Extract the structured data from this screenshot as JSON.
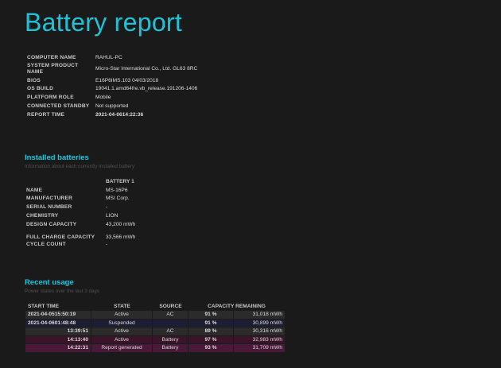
{
  "title": "Battery report",
  "system_info": [
    {
      "label": "COMPUTER NAME",
      "value": "RAHUL-PC"
    },
    {
      "label": "SYSTEM PRODUCT NAME",
      "value": "Micro-Star International Co., Ltd. GL63 8RC"
    },
    {
      "label": "BIOS",
      "value": "E16P6IMS.103 04/03/2018"
    },
    {
      "label": "OS BUILD",
      "value": "19041.1.amd64fre.vb_release.191206-1406"
    },
    {
      "label": "PLATFORM ROLE",
      "value": "Mobile"
    },
    {
      "label": "CONNECTED STANDBY",
      "value": "Not supported"
    },
    {
      "label": "REPORT TIME",
      "value": "2021-04-0614:22:36"
    }
  ],
  "installed_batteries": {
    "title": "Installed batteries",
    "subtitle": "Information about each currently installed battery",
    "column_header": "BATTERY 1",
    "rows": [
      {
        "label": "NAME",
        "value": "MS-16P6"
      },
      {
        "label": "MANUFACTURER",
        "value": "MSI Corp."
      },
      {
        "label": "SERIAL NUMBER",
        "value": "-"
      },
      {
        "label": "CHEMISTRY",
        "value": "LION"
      },
      {
        "label": "DESIGN CAPACITY",
        "value": "43,200 mWh"
      },
      {
        "label": "FULL CHARGE CAPACITY",
        "value": "33,566 mWh"
      },
      {
        "label": "CYCLE COUNT",
        "value": "-"
      }
    ]
  },
  "recent_usage": {
    "title": "Recent usage",
    "subtitle": "Power states over the last 3 days",
    "headers": {
      "start_time": "START TIME",
      "state": "STATE",
      "source": "SOURCE",
      "capacity": "CAPACITY REMAINING"
    },
    "rows": [
      {
        "start": "2021-04-0515:50:19",
        "state": "Active",
        "source": "AC",
        "pct": "91 %",
        "mwh": "31,018 mWh"
      },
      {
        "start": "2021-04-0601:48:48",
        "state": "Suspended",
        "source": "",
        "pct": "91 %",
        "mwh": "30,899 mWh"
      },
      {
        "start": "13:39:51",
        "state": "Active",
        "source": "AC",
        "pct": "89 %",
        "mwh": "30,316 mWh"
      },
      {
        "start": "14:13:40",
        "state": "Active",
        "source": "Battery",
        "pct": "97 %",
        "mwh": "32,983 mWh"
      },
      {
        "start": "14:22:31",
        "state": "Report generated",
        "source": "Battery",
        "pct": "93 %",
        "mwh": "31,709 mWh"
      }
    ]
  },
  "colors": {
    "background": "#1a1a1a",
    "accent": "#1fc3d8",
    "row_ac": "#2b2b2b",
    "row_suspended": "#1d1d33",
    "row_battery": "#3a1428",
    "row_report": "#4a1838"
  }
}
